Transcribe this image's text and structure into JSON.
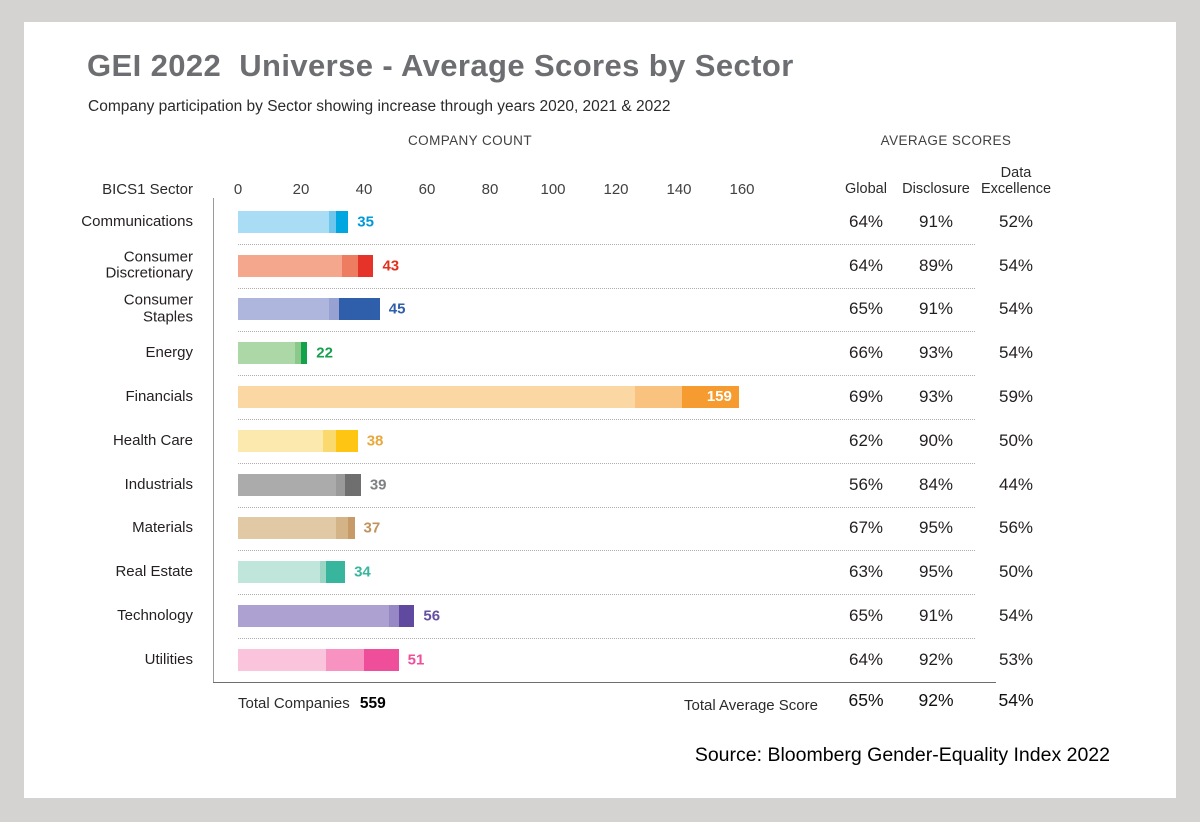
{
  "page": {
    "background": "#d5d3d1",
    "card_background": "#ffffff"
  },
  "header": {
    "title": "GEI 2022  Universe - Average Scores by Sector",
    "subtitle": "Company participation by Sector showing increase through years 2020, 2021 & 2022"
  },
  "sections": {
    "company_count": "COMPANY COUNT",
    "average_scores": "AVERAGE SCORES"
  },
  "axis": {
    "label": "BICS1 Sector",
    "ticks": [
      0,
      20,
      40,
      60,
      80,
      100,
      120,
      140,
      160
    ],
    "max": 160
  },
  "score_column_headers": {
    "global": "Global",
    "disclosure": "Disclosure",
    "data_excellence_line1": "Data",
    "data_excellence_line2": "Excellence"
  },
  "chart_data": {
    "type": "bar",
    "orientation": "horizontal",
    "stacking": "cumulative participation by year",
    "years": [
      "2020",
      "2021",
      "2022"
    ],
    "title": "GEI 2022 Universe - Average Scores by Sector",
    "xlabel": "COMPANY COUNT",
    "xlim": [
      0,
      160
    ],
    "grid": "dotted row separators",
    "rows": [
      {
        "sector": "Communications",
        "label_lines": [
          "Communications"
        ],
        "counts_by_year": [
          29,
          31,
          35
        ],
        "total": 35,
        "scores": [
          "64%",
          "91%",
          "52%"
        ],
        "value_inside": false,
        "colors": {
          "light": "#a9dcf5",
          "mid": "#6fc6ec",
          "dark": "#00a6e0",
          "label": "#0099d8"
        }
      },
      {
        "sector": "Consumer Discretionary",
        "label_lines": [
          "Consumer",
          "Discretionary"
        ],
        "counts_by_year": [
          33,
          38,
          43
        ],
        "total": 43,
        "scores": [
          "64%",
          "89%",
          "54%"
        ],
        "value_inside": false,
        "colors": {
          "light": "#f4a78d",
          "mid": "#ee7c60",
          "dark": "#e6332a",
          "label": "#e0301c"
        }
      },
      {
        "sector": "Consumer Staples",
        "label_lines": [
          "Consumer",
          "Staples"
        ],
        "counts_by_year": [
          29,
          32,
          45
        ],
        "total": 45,
        "scores": [
          "65%",
          "91%",
          "54%"
        ],
        "value_inside": false,
        "colors": {
          "light": "#afb6de",
          "mid": "#97a2d2",
          "dark": "#2f5faa",
          "label": "#2f5faa"
        }
      },
      {
        "sector": "Energy",
        "label_lines": [
          "Energy"
        ],
        "counts_by_year": [
          18,
          20,
          22
        ],
        "total": 22,
        "scores": [
          "66%",
          "93%",
          "54%"
        ],
        "value_inside": false,
        "colors": {
          "light": "#acd7a6",
          "mid": "#8bc98b",
          "dark": "#12a24a",
          "label": "#16a04e"
        }
      },
      {
        "sector": "Financials",
        "label_lines": [
          "Financials"
        ],
        "counts_by_year": [
          126,
          141,
          159
        ],
        "total": 159,
        "scores": [
          "69%",
          "93%",
          "59%"
        ],
        "value_inside": true,
        "colors": {
          "light": "#fbd8a3",
          "mid": "#f9c37f",
          "dark": "#f69b30",
          "label": "#ffffff"
        }
      },
      {
        "sector": "Health Care",
        "label_lines": [
          "Health Care"
        ],
        "counts_by_year": [
          27,
          31,
          38
        ],
        "total": 38,
        "scores": [
          "62%",
          "90%",
          "50%"
        ],
        "value_inside": false,
        "colors": {
          "light": "#fbe9ae",
          "mid": "#fada6f",
          "dark": "#fec613",
          "label": "#e9a83b"
        }
      },
      {
        "sector": "Industrials",
        "label_lines": [
          "Industrials"
        ],
        "counts_by_year": [
          31,
          34,
          39
        ],
        "total": 39,
        "scores": [
          "56%",
          "84%",
          "44%"
        ],
        "value_inside": false,
        "colors": {
          "light": "#ababab",
          "mid": "#9a9a9a",
          "dark": "#6f6f6f",
          "label": "#7e8083"
        }
      },
      {
        "sector": "Materials",
        "label_lines": [
          "Materials"
        ],
        "counts_by_year": [
          31,
          35,
          37
        ],
        "total": 37,
        "scores": [
          "67%",
          "95%",
          "56%"
        ],
        "value_inside": false,
        "colors": {
          "light": "#e0c9a4",
          "mid": "#d4b487",
          "dark": "#c69b67",
          "label": "#c1935c"
        }
      },
      {
        "sector": "Real Estate",
        "label_lines": [
          "Real Estate"
        ],
        "counts_by_year": [
          26,
          28,
          34
        ],
        "total": 34,
        "scores": [
          "63%",
          "95%",
          "50%"
        ],
        "value_inside": false,
        "colors": {
          "light": "#c0e5da",
          "mid": "#9bd6c4",
          "dark": "#38b59d",
          "label": "#38b59d"
        }
      },
      {
        "sector": "Technology",
        "label_lines": [
          "Technology"
        ],
        "counts_by_year": [
          48,
          51,
          56
        ],
        "total": 56,
        "scores": [
          "65%",
          "91%",
          "54%"
        ],
        "value_inside": false,
        "colors": {
          "light": "#ada1d2",
          "mid": "#9688c4",
          "dark": "#5f4aa0",
          "label": "#6650a2"
        }
      },
      {
        "sector": "Utilities",
        "label_lines": [
          "Utilities"
        ],
        "counts_by_year": [
          28,
          40,
          51
        ],
        "total": 51,
        "scores": [
          "64%",
          "92%",
          "53%"
        ],
        "value_inside": false,
        "colors": {
          "light": "#fac4dc",
          "mid": "#f892c0",
          "dark": "#ef4e9a",
          "label": "#ef4e9a"
        }
      }
    ],
    "score_columns": [
      "Global",
      "Disclosure",
      "Data Excellence"
    ]
  },
  "totals": {
    "companies_label": "Total Companies",
    "companies_value": "559",
    "avg_label": "Total Average Score",
    "avg_scores": [
      "65%",
      "92%",
      "54%"
    ]
  },
  "source": "Source: Bloomberg Gender-Equality Index 2022"
}
